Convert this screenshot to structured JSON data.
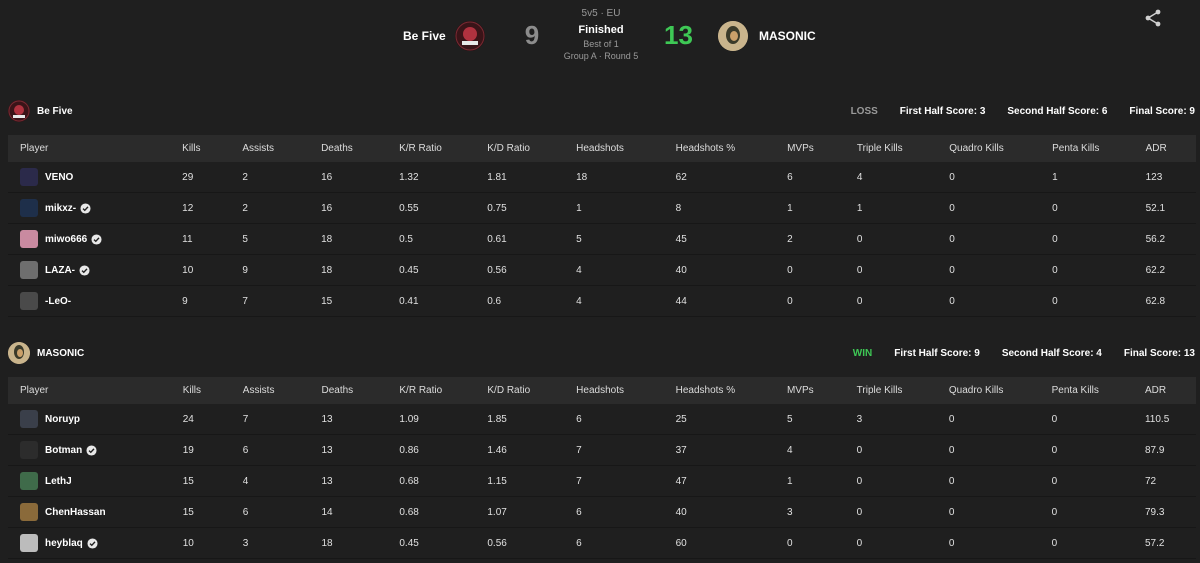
{
  "match": {
    "mode": "5v5 · EU",
    "status": "Finished",
    "best_of": "Best of 1",
    "round": "Group A · Round 5",
    "team_left": {
      "name": "Be Five",
      "score": "9",
      "color": "#8c8c8c"
    },
    "team_right": {
      "name": "MASONIC",
      "score": "13",
      "color": "#3ec855"
    }
  },
  "columns": [
    "Player",
    "Kills",
    "Assists",
    "Deaths",
    "K/R Ratio",
    "K/D Ratio",
    "Headshots",
    "Headshots %",
    "MVPs",
    "Triple Kills",
    "Quadro Kills",
    "Penta Kills",
    "ADR"
  ],
  "teams": [
    {
      "name": "Be Five",
      "result": "LOSS",
      "first_half": "First Half Score: 3",
      "second_half": "Second Half Score: 6",
      "final": "Final Score: 9",
      "players": [
        {
          "name": "VENO",
          "verified": false,
          "stats": [
            "29",
            "2",
            "16",
            "1.32",
            "1.81",
            "18",
            "62",
            "6",
            "4",
            "0",
            "1",
            "123"
          ]
        },
        {
          "name": "mikxz-",
          "verified": true,
          "stats": [
            "12",
            "2",
            "16",
            "0.55",
            "0.75",
            "1",
            "8",
            "1",
            "1",
            "0",
            "0",
            "52.1"
          ]
        },
        {
          "name": "miwo666",
          "verified": true,
          "stats": [
            "11",
            "5",
            "18",
            "0.5",
            "0.61",
            "5",
            "45",
            "2",
            "0",
            "0",
            "0",
            "56.2"
          ]
        },
        {
          "name": "LAZA-",
          "verified": true,
          "stats": [
            "10",
            "9",
            "18",
            "0.45",
            "0.56",
            "4",
            "40",
            "0",
            "0",
            "0",
            "0",
            "62.2"
          ]
        },
        {
          "name": "-LeO-",
          "verified": false,
          "stats": [
            "9",
            "7",
            "15",
            "0.41",
            "0.6",
            "4",
            "44",
            "0",
            "0",
            "0",
            "0",
            "62.8"
          ]
        }
      ]
    },
    {
      "name": "MASONIC",
      "result": "WIN",
      "first_half": "First Half Score: 9",
      "second_half": "Second Half Score: 4",
      "final": "Final Score: 13",
      "players": [
        {
          "name": "Noruyp",
          "verified": false,
          "stats": [
            "24",
            "7",
            "13",
            "1.09",
            "1.85",
            "6",
            "25",
            "5",
            "3",
            "0",
            "0",
            "110.5"
          ]
        },
        {
          "name": "Botman",
          "verified": true,
          "stats": [
            "19",
            "6",
            "13",
            "0.86",
            "1.46",
            "7",
            "37",
            "4",
            "0",
            "0",
            "0",
            "87.9"
          ]
        },
        {
          "name": "LethJ",
          "verified": false,
          "stats": [
            "15",
            "4",
            "13",
            "0.68",
            "1.15",
            "7",
            "47",
            "1",
            "0",
            "0",
            "0",
            "72"
          ]
        },
        {
          "name": "ChenHassan",
          "verified": false,
          "stats": [
            "15",
            "6",
            "14",
            "0.68",
            "1.07",
            "6",
            "40",
            "3",
            "0",
            "0",
            "0",
            "79.3"
          ]
        },
        {
          "name": "heyblaq",
          "verified": true,
          "stats": [
            "10",
            "3",
            "18",
            "0.45",
            "0.56",
            "6",
            "60",
            "0",
            "0",
            "0",
            "0",
            "57.2"
          ]
        }
      ]
    }
  ],
  "icons": {
    "share": "share-icon",
    "verified": "verified-badge-icon"
  }
}
